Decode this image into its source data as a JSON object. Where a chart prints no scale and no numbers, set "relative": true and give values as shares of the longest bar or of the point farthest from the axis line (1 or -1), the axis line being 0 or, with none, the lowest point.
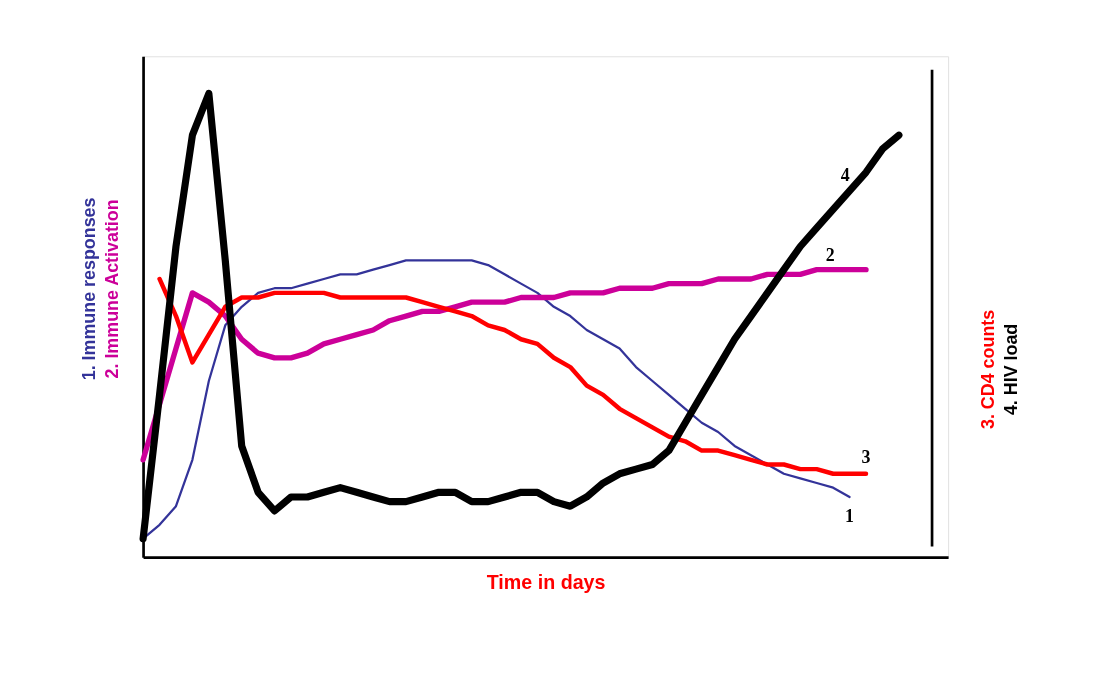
{
  "chart_data": {
    "type": "line",
    "relative": true,
    "xlabel": "Time in days",
    "ylabel": "1. Immune responses\n2. Immune Activation",
    "y2label": "3. CD4 counts\n4. HIV load",
    "grid": false,
    "marker": "none",
    "line_style": "solid",
    "categories": [
      null,
      null,
      null,
      null,
      null,
      null,
      null,
      null,
      null,
      null,
      null,
      null,
      null,
      null,
      null,
      null,
      null,
      null,
      null,
      null,
      null,
      null,
      null,
      null,
      null,
      null,
      null,
      null,
      null,
      null,
      null,
      null,
      null,
      null,
      null,
      null,
      null,
      null,
      null,
      null,
      null,
      null,
      null,
      null,
      null,
      null,
      null,
      null,
      null,
      null
    ],
    "series": [
      {
        "color": "#333399",
        "values": [
          0.04,
          0.07,
          0.11,
          0.21,
          0.38,
          0.5,
          0.54,
          0.57,
          0.58,
          0.58,
          0.59,
          0.6,
          0.61,
          0.61,
          0.62,
          0.63,
          0.64,
          0.64,
          0.64,
          0.64,
          0.64,
          0.63,
          0.61,
          0.59,
          0.57,
          0.54,
          0.52,
          0.49,
          0.47,
          0.45,
          0.41,
          0.38,
          0.35,
          0.32,
          0.29,
          0.27,
          0.24,
          0.22,
          0.2,
          0.18,
          0.17,
          0.16,
          0.15,
          0.13,
          null,
          null,
          null,
          null,
          null,
          null
        ]
      },
      {
        "color": "#cc0099",
        "values": [
          0.21,
          0.33,
          0.45,
          0.57,
          0.55,
          0.52,
          0.47,
          0.44,
          0.43,
          0.43,
          0.44,
          0.46,
          0.47,
          0.48,
          0.49,
          0.51,
          0.52,
          0.53,
          0.53,
          0.54,
          0.55,
          0.55,
          0.55,
          0.56,
          0.56,
          0.56,
          0.57,
          0.57,
          0.57,
          0.58,
          0.58,
          0.58,
          0.59,
          0.59,
          0.59,
          0.6,
          0.6,
          0.6,
          0.61,
          0.61,
          0.61,
          0.62,
          0.62,
          0.62,
          0.62,
          null,
          null,
          null,
          null,
          null
        ]
      },
      {
        "color": "#ff0000",
        "values": [
          null,
          0.6,
          0.52,
          0.42,
          0.48,
          0.54,
          0.56,
          0.56,
          0.57,
          0.57,
          0.57,
          0.57,
          0.56,
          0.56,
          0.56,
          0.56,
          0.56,
          0.55,
          0.54,
          0.53,
          0.52,
          0.5,
          0.49,
          0.47,
          0.46,
          0.43,
          0.41,
          0.37,
          0.35,
          0.32,
          0.3,
          0.28,
          0.26,
          0.25,
          0.23,
          0.23,
          0.22,
          0.21,
          0.2,
          0.2,
          0.19,
          0.19,
          0.18,
          0.18,
          0.18,
          null,
          null,
          null,
          null,
          null
        ]
      },
      {
        "color": "#000000",
        "values": [
          0.04,
          0.35,
          0.67,
          0.91,
          1.0,
          0.64,
          0.24,
          0.14,
          0.1,
          0.13,
          0.13,
          0.14,
          0.15,
          0.14,
          0.13,
          0.12,
          0.12,
          0.13,
          0.14,
          0.14,
          0.12,
          0.12,
          0.13,
          0.14,
          0.14,
          0.12,
          0.11,
          0.13,
          0.16,
          0.18,
          0.19,
          0.2,
          0.23,
          0.29,
          0.35,
          0.41,
          0.47,
          0.52,
          0.57,
          0.62,
          0.67,
          0.71,
          0.75,
          0.79,
          0.83,
          0.88,
          0.91,
          null,
          null,
          null
        ]
      }
    ],
    "annotations": [
      "1",
      "2",
      "3",
      "4"
    ]
  }
}
